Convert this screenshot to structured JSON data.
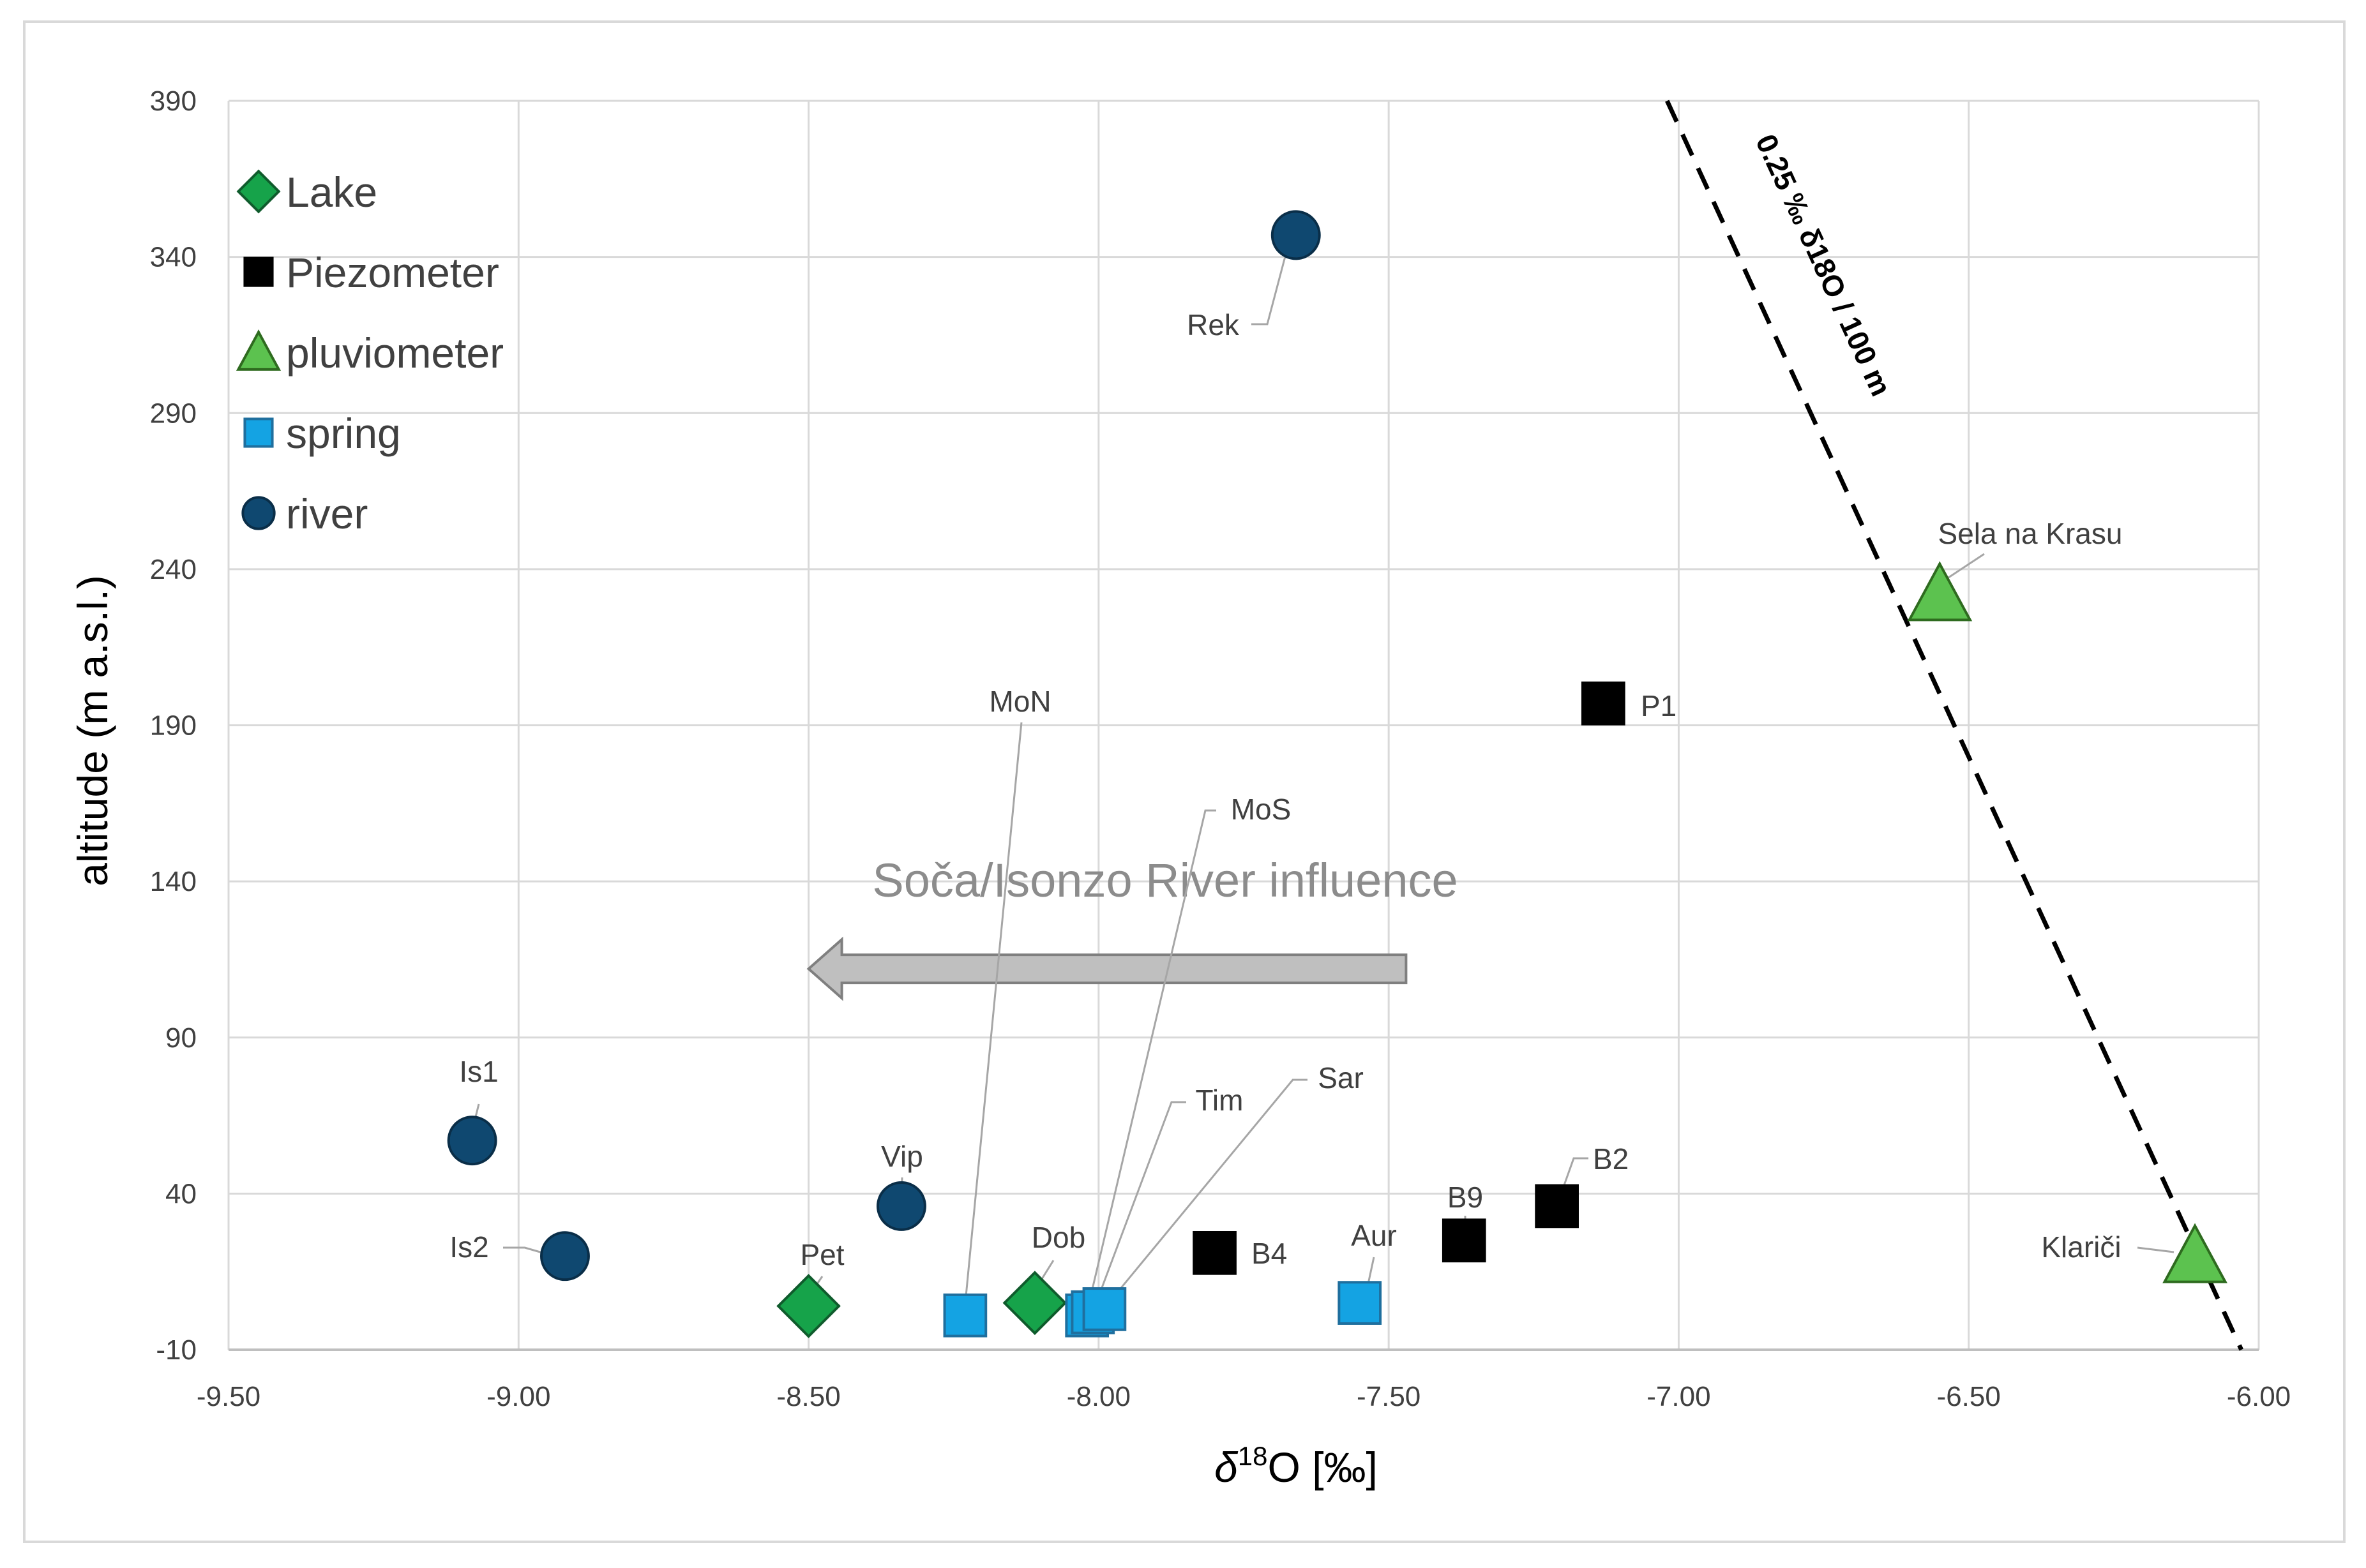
{
  "chart_data": {
    "type": "scatter",
    "xlabel": {
      "prefix": "δ",
      "sup": "18",
      "suffix": "O [‰]"
    },
    "ylabel": "altitude (m a.s.l.)",
    "xlim": [
      -9.5,
      -6.0
    ],
    "ylim": [
      -10,
      390
    ],
    "x_ticks": [
      -9.5,
      -9.0,
      -8.5,
      -8.0,
      -7.5,
      -7.0,
      -6.5,
      -6.0
    ],
    "x_tick_labels": [
      "-9.50",
      "-9.00",
      "-8.50",
      "-8.00",
      "-7.50",
      "-7.00",
      "-6.50",
      "-6.00"
    ],
    "y_ticks": [
      -10,
      40,
      90,
      140,
      190,
      240,
      290,
      340,
      390
    ],
    "y_tick_labels": [
      "-10",
      "40",
      "90",
      "140",
      "190",
      "240",
      "290",
      "340",
      "390"
    ],
    "grid": true,
    "legend_position": "top-left",
    "colors": {
      "lake": "#16a34a",
      "piezometer": "#000000",
      "pluviometer": "#5cc24f",
      "spring": "#14a3e3",
      "river": "#0f4870",
      "grid": "#d9d9d9",
      "axis_text": "#404040",
      "annotation": "#8c8c8c",
      "arrow_fill": "#bfbfbf",
      "arrow_stroke": "#7f7f7f"
    },
    "series": [
      {
        "key": "lake",
        "name": "Lake",
        "marker": "diamond",
        "points": [
          {
            "label": "Pet",
            "x": -8.5,
            "y": 4
          },
          {
            "label": "Dob",
            "x": -8.11,
            "y": 5
          }
        ]
      },
      {
        "key": "piezometer",
        "name": "Piezometer",
        "marker": "square",
        "points": [
          {
            "label": "P1",
            "x": -7.13,
            "y": 197
          },
          {
            "label": "B2",
            "x": -7.21,
            "y": 36
          },
          {
            "label": "B9",
            "x": -7.37,
            "y": 25
          },
          {
            "label": "B4",
            "x": -7.8,
            "y": 21
          }
        ]
      },
      {
        "key": "pluviometer",
        "name": "pluviometer",
        "marker": "triangle",
        "points": [
          {
            "label": "Sela na Krasu",
            "x": -6.55,
            "y": 232
          },
          {
            "label": "Klariči",
            "x": -6.11,
            "y": 20
          }
        ]
      },
      {
        "key": "spring",
        "name": "spring",
        "marker": "square",
        "points": [
          {
            "label": "MoN",
            "x": -8.23,
            "y": 1
          },
          {
            "label": "MoS",
            "x": -8.02,
            "y": 1
          },
          {
            "label": "Tim",
            "x": -8.01,
            "y": 2
          },
          {
            "label": "Sar",
            "x": -7.99,
            "y": 3
          },
          {
            "label": "Aur",
            "x": -7.55,
            "y": 5
          }
        ]
      },
      {
        "key": "river",
        "name": "river",
        "marker": "circle",
        "points": [
          {
            "label": "Rek",
            "x": -7.66,
            "y": 347
          },
          {
            "label": "Is1",
            "x": -9.08,
            "y": 57
          },
          {
            "label": "Is2",
            "x": -8.92,
            "y": 20
          },
          {
            "label": "Vip",
            "x": -8.34,
            "y": 36
          }
        ]
      }
    ],
    "trend_line": {
      "label": "0.25 ‰ δ18O / 100 m",
      "x1": -7.02,
      "y1": 390,
      "x2": -6.03,
      "y2": -10
    },
    "annotations": {
      "arrow_text": "Soča/Isonzo River influence",
      "arrow_from_x": -7.47,
      "arrow_to_x": -8.5,
      "arrow_y": 112
    }
  }
}
